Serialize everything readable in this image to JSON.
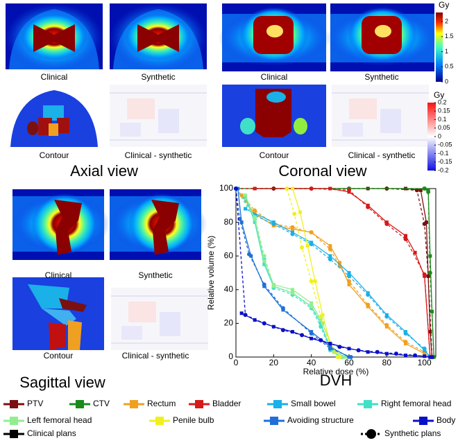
{
  "panels": {
    "axial": {
      "title": "Axial view",
      "labels": [
        "Clinical",
        "Synthetic",
        "Contour",
        "Clinical - synthetic"
      ]
    },
    "coronal": {
      "title": "Coronal view",
      "labels": [
        "Clinical",
        "Synthetic",
        "Contour",
        "Clinical - synthetic"
      ]
    },
    "sagittal": {
      "title": "Sagittal view",
      "labels": [
        "Clinical",
        "Synthetic",
        "Contour",
        "Clinical - synthetic"
      ]
    }
  },
  "colorbars": [
    {
      "unit": "Gy",
      "lim": [
        0,
        2.3
      ],
      "ticks": [
        2,
        1.5,
        1,
        0.5,
        0
      ]
    },
    {
      "unit": "Gy",
      "lim": [
        -0.2,
        0.2
      ],
      "ticks": [
        0.2,
        0.15,
        0.1,
        0.05,
        0,
        -0.05,
        -0.1,
        -0.15,
        -0.2
      ]
    }
  ],
  "chart_data": {
    "type": "line",
    "title": "DVH",
    "xlabel": "Relative dose (%)",
    "ylabel": "Relative volume (%)",
    "xlim": [
      0,
      106
    ],
    "ylim": [
      0,
      100
    ],
    "xticks": [
      0,
      20,
      40,
      60,
      80,
      100
    ],
    "yticks": [
      0,
      20,
      40,
      60,
      80,
      100
    ],
    "line_styles": [
      "Clinical plans",
      "Synthetic plans"
    ],
    "series": [
      {
        "name": "PTV",
        "color": "#7a1010",
        "clinical": {
          "x": [
            10,
            30,
            50,
            70,
            90,
            98,
            101,
            103,
            104
          ],
          "values": [
            100,
            100,
            100,
            100,
            100,
            99,
            80,
            15,
            0
          ]
        },
        "synthetic": {
          "x": [
            0,
            20,
            40,
            60,
            80,
            96,
            100,
            102,
            104
          ],
          "values": [
            100,
            100,
            100,
            100,
            100,
            99,
            79,
            48,
            0
          ]
        }
      },
      {
        "name": "CTV",
        "color": "#1a8a1a",
        "clinical": {
          "x": [
            0,
            50,
            100,
            102,
            103,
            104,
            105
          ],
          "values": [
            100,
            100,
            100,
            99,
            60,
            27,
            0
          ]
        },
        "synthetic": {
          "x": [
            0,
            60,
            100,
            102,
            103,
            105
          ],
          "values": [
            100,
            100,
            100,
            98,
            50,
            0
          ]
        }
      },
      {
        "name": "Rectum",
        "color": "#f0a020",
        "clinical": {
          "x": [
            3,
            10,
            20,
            30,
            40,
            50,
            55,
            60,
            70,
            80,
            90,
            100,
            103
          ],
          "values": [
            96,
            85,
            78,
            76,
            74,
            66,
            56,
            43,
            30,
            18,
            8,
            2,
            0
          ]
        },
        "synthetic": {
          "x": [
            0,
            10,
            20,
            30,
            40,
            50,
            55,
            60,
            70,
            80,
            90,
            100,
            103
          ],
          "values": [
            100,
            87,
            79,
            77,
            74,
            64,
            54,
            45,
            31,
            19,
            9,
            3,
            0
          ]
        }
      },
      {
        "name": "Bladder",
        "color": "#d41a1a",
        "clinical": {
          "x": [
            10,
            50,
            60,
            70,
            80,
            90,
            95,
            100,
            103
          ],
          "values": [
            100,
            100,
            98,
            90,
            80,
            72,
            62,
            48,
            0
          ]
        },
        "synthetic": {
          "x": [
            0,
            40,
            60,
            70,
            80,
            90,
            100,
            103
          ],
          "values": [
            100,
            100,
            99,
            89,
            79,
            70,
            49,
            0
          ]
        }
      },
      {
        "name": "Small bowel",
        "color": "#1ab0e8",
        "clinical": {
          "x": [
            5,
            20,
            30,
            40,
            50,
            60,
            70,
            80,
            90,
            100,
            103
          ],
          "values": [
            88,
            80,
            74,
            68,
            60,
            50,
            38,
            25,
            15,
            4,
            0
          ]
        },
        "synthetic": {
          "x": [
            0,
            10,
            20,
            30,
            40,
            50,
            60,
            70,
            80,
            90,
            100,
            103
          ],
          "values": [
            100,
            84,
            79,
            73,
            67,
            58,
            48,
            37,
            24,
            14,
            5,
            0
          ]
        }
      },
      {
        "name": "Right femoral head",
        "color": "#40e0c8",
        "clinical": {
          "x": [
            5,
            10,
            15,
            20,
            30,
            40,
            45,
            50,
            55
          ],
          "values": [
            95,
            80,
            55,
            42,
            38,
            30,
            20,
            5,
            0
          ]
        },
        "synthetic": {
          "x": [
            0,
            10,
            15,
            20,
            30,
            40,
            45,
            50,
            56
          ],
          "values": [
            100,
            82,
            58,
            41,
            37,
            29,
            18,
            4,
            0
          ]
        }
      },
      {
        "name": "Left femoral head",
        "color": "#90ee90",
        "clinical": {
          "x": [
            5,
            10,
            15,
            20,
            30,
            40,
            45,
            52,
            58
          ],
          "values": [
            96,
            82,
            57,
            43,
            40,
            32,
            22,
            4,
            0
          ]
        },
        "synthetic": {
          "x": [
            0,
            10,
            15,
            20,
            30,
            40,
            46,
            52,
            57
          ],
          "values": [
            100,
            83,
            60,
            42,
            38,
            30,
            20,
            3,
            0
          ]
        }
      },
      {
        "name": "Penile bulb",
        "color": "#f0f020",
        "clinical": {
          "x": [
            30,
            34,
            38,
            42,
            46,
            50,
            55
          ],
          "values": [
            100,
            86,
            66,
            45,
            25,
            8,
            0
          ]
        },
        "synthetic": {
          "x": [
            27,
            31,
            35,
            40,
            45,
            50,
            54
          ],
          "values": [
            100,
            85,
            65,
            45,
            24,
            6,
            0
          ]
        }
      },
      {
        "name": "Avoiding structure",
        "color": "#1e70d8",
        "clinical": {
          "x": [
            1,
            3,
            8,
            15,
            25,
            40,
            50,
            60
          ],
          "values": [
            100,
            80,
            60,
            42,
            28,
            15,
            6,
            0
          ]
        },
        "synthetic": {
          "x": [
            0,
            2,
            7,
            15,
            25,
            40,
            50,
            61
          ],
          "values": [
            100,
            82,
            61,
            43,
            29,
            14,
            5,
            0
          ]
        }
      },
      {
        "name": "Body",
        "color": "#0a10c8",
        "clinical": {
          "x": [
            3,
            10,
            20,
            30,
            40,
            50,
            60,
            70,
            80,
            90,
            100,
            103
          ],
          "values": [
            26,
            22,
            18,
            15,
            11,
            8,
            5,
            3,
            2,
            1,
            0.5,
            0
          ]
        },
        "synthetic": {
          "x": [
            0,
            5,
            15,
            25,
            35,
            45,
            55,
            65,
            75,
            85,
            95,
            104
          ],
          "values": [
            100,
            25,
            20,
            16,
            13,
            10,
            6,
            4,
            3,
            2,
            1,
            0
          ]
        }
      }
    ]
  }
}
